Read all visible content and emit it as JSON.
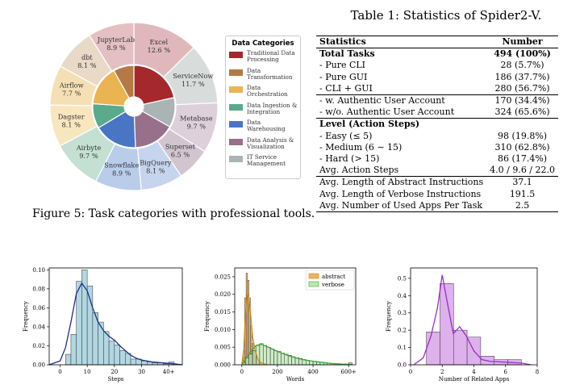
{
  "pie": {
    "legend_title": "Data Categories",
    "legend": [
      {
        "label": "Traditional Data Processing",
        "color": "#a4282c"
      },
      {
        "label": "Data Transformation",
        "color": "#b37a45"
      },
      {
        "label": "Data Orchestration",
        "color": "#eab452"
      },
      {
        "label": "Data Ingestion & Integration",
        "color": "#5aaa8b"
      },
      {
        "label": "Data Warehousing",
        "color": "#4a74c4"
      },
      {
        "label": "Data Analysis & Visualization",
        "color": "#98708c"
      },
      {
        "label": "IT Service Management",
        "color": "#aab4b4"
      }
    ],
    "outer": [
      {
        "name": "Excel",
        "pct": "12.6 %",
        "value": 12.6,
        "color": "#e0b8bb"
      },
      {
        "name": "ServiceNow",
        "pct": "11.7 %",
        "value": 11.7,
        "color": "#d8dcdb"
      },
      {
        "name": "Metabase",
        "pct": "9.7 %",
        "value": 9.7,
        "color": "#ddd0db"
      },
      {
        "name": "Superset",
        "pct": "6.5 %",
        "value": 6.5,
        "color": "#d3c5d0"
      },
      {
        "name": "BigQuery",
        "pct": "8.1 %",
        "value": 8.1,
        "color": "#c6d4ee"
      },
      {
        "name": "Snowflake",
        "pct": "8.9 %",
        "value": 8.9,
        "color": "#b9cdea"
      },
      {
        "name": "Airbyte",
        "pct": "9.7 %",
        "value": 9.7,
        "color": "#c3e0d2"
      },
      {
        "name": "Dagster",
        "pct": "8.1 %",
        "value": 8.1,
        "color": "#f8e6bf"
      },
      {
        "name": "Airflow",
        "pct": "7.7 %",
        "value": 7.7,
        "color": "#f5e0b5"
      },
      {
        "name": "dbt",
        "pct": "8.1 %",
        "value": 8.1,
        "color": "#e9d9c7"
      },
      {
        "name": "JupyterLab",
        "pct": "8.9 %",
        "value": 8.9,
        "color": "#e4c0c3"
      }
    ],
    "inner": [
      {
        "value": 21.5,
        "color": "#a4282c"
      },
      {
        "value": 11.7,
        "color": "#aab4b4"
      },
      {
        "value": 16.2,
        "color": "#98708c"
      },
      {
        "value": 17.0,
        "color": "#4a74c4"
      },
      {
        "value": 9.7,
        "color": "#5aaa8b"
      },
      {
        "value": 15.8,
        "color": "#eab452"
      },
      {
        "value": 8.1,
        "color": "#b37a45"
      }
    ]
  },
  "caption": "Figure 5: Task categories with professional tools.",
  "table": {
    "title": "Table 1: Statistics of Spider2-V.",
    "header": [
      "Statistics",
      "Number"
    ],
    "rows": [
      [
        "Total Tasks",
        "494 (100%)"
      ],
      [
        "- Pure CLI",
        "28 (5.7%)"
      ],
      [
        "- Pure GUI",
        "186 (37.7%)"
      ],
      [
        "- CLI + GUI",
        "280 (56.7%)"
      ],
      [
        "- w. Authentic User Account",
        "170 (34.4%)"
      ],
      [
        "- w/o. Authentic User Account",
        "324 (65.6%)"
      ],
      [
        "Level (Action Steps)",
        ""
      ],
      [
        "- Easy (≤ 5)",
        "98 (19.8%)"
      ],
      [
        "- Medium (6 ∼ 15)",
        "310 (62.8%)"
      ],
      [
        "- Hard (> 15)",
        "86 (17.4%)"
      ],
      [
        "Avg. Action Steps",
        "4.0 / 9.6 / 22.0"
      ],
      [
        "Avg. Length of Abstract Instructions",
        "37.1"
      ],
      [
        "Avg. Length of Verbose Instructions",
        "191.5"
      ],
      [
        "Avg. Number of Used Apps Per Task",
        "2.5"
      ]
    ]
  },
  "chart_data": [
    {
      "type": "bar",
      "xlabel": "Steps",
      "ylabel": "Frequency",
      "xticks": [
        "0",
        "10",
        "20",
        "30",
        "40+"
      ],
      "yticks": [
        "0.00",
        "0.02",
        "0.04",
        "0.06",
        "0.08",
        "0.10"
      ],
      "xlim": [
        -4,
        45
      ],
      "ylim": [
        0,
        0.102
      ],
      "bin_width": 2,
      "bins_start": [
        0,
        2,
        4,
        6,
        8,
        10,
        12,
        14,
        16,
        18,
        20,
        22,
        24,
        26,
        28,
        30,
        32,
        34,
        36,
        38,
        40
      ],
      "values": [
        0.0,
        0.011,
        0.032,
        0.088,
        0.1,
        0.083,
        0.055,
        0.045,
        0.035,
        0.025,
        0.021,
        0.015,
        0.012,
        0.006,
        0.006,
        0.004,
        0.003,
        0.002,
        0.002,
        0.001,
        0.003
      ],
      "kde": [
        [
          -4,
          0.0
        ],
        [
          0,
          0.004
        ],
        [
          2,
          0.018
        ],
        [
          4,
          0.045
        ],
        [
          6,
          0.075
        ],
        [
          8,
          0.086
        ],
        [
          10,
          0.078
        ],
        [
          12,
          0.06
        ],
        [
          14,
          0.045
        ],
        [
          16,
          0.036
        ],
        [
          18,
          0.03
        ],
        [
          20,
          0.026
        ],
        [
          22,
          0.02
        ],
        [
          24,
          0.015
        ],
        [
          26,
          0.01
        ],
        [
          28,
          0.007
        ],
        [
          30,
          0.005
        ],
        [
          34,
          0.003
        ],
        [
          38,
          0.002
        ],
        [
          42,
          0.001
        ],
        [
          45,
          0.0
        ]
      ],
      "bar_color": "#a9d3de",
      "line_color": "#1e2f8a"
    },
    {
      "type": "bar",
      "xlabel": "Words",
      "ylabel": "Frequency",
      "xticks": [
        "0",
        "200",
        "400",
        "600+"
      ],
      "yticks": [
        "0.000",
        "0.005",
        "0.010",
        "0.015",
        "0.020",
        "0.025"
      ],
      "xlim": [
        -40,
        640
      ],
      "ylim": [
        0,
        0.0275
      ],
      "series": [
        {
          "name": "abstract",
          "color": "#f2b25e",
          "line_color": "#d88a10",
          "bin_width": 8,
          "bins_start": [
            0,
            8,
            16,
            24,
            32,
            40,
            48,
            56,
            64,
            72,
            80,
            88,
            96,
            104
          ],
          "values": [
            0.0005,
            0.004,
            0.019,
            0.026,
            0.024,
            0.019,
            0.011,
            0.006,
            0.004,
            0.003,
            0.002,
            0.001,
            0.001,
            0.0005
          ],
          "kde": [
            [
              0,
              0.0
            ],
            [
              10,
              0.004
            ],
            [
              20,
              0.014
            ],
            [
              30,
              0.0205
            ],
            [
              40,
              0.019
            ],
            [
              50,
              0.014
            ],
            [
              60,
              0.008
            ],
            [
              75,
              0.004
            ],
            [
              90,
              0.0015
            ],
            [
              110,
              0.0005
            ],
            [
              140,
              0.0
            ]
          ]
        },
        {
          "name": "verbose",
          "color": "#bde6b1",
          "line_color": "#3aa83a",
          "bin_width": 20,
          "bins_start": [
            0,
            20,
            40,
            60,
            80,
            100,
            120,
            140,
            160,
            180,
            200,
            220,
            240,
            260,
            280,
            300,
            320,
            340,
            360,
            380,
            400,
            420,
            440,
            460,
            480,
            500,
            520,
            540,
            560,
            580,
            600
          ],
          "values": [
            0.0005,
            0.002,
            0.003,
            0.004,
            0.0055,
            0.006,
            0.0055,
            0.005,
            0.0045,
            0.004,
            0.0038,
            0.0033,
            0.003,
            0.0027,
            0.0023,
            0.002,
            0.0018,
            0.0015,
            0.0013,
            0.0011,
            0.001,
            0.0008,
            0.0007,
            0.0006,
            0.0005,
            0.0004,
            0.0003,
            0.0003,
            0.0002,
            0.0002,
            0.0006
          ],
          "kde": [
            [
              0,
              0.0002
            ],
            [
              40,
              0.003
            ],
            [
              80,
              0.0055
            ],
            [
              110,
              0.0058
            ],
            [
              150,
              0.005
            ],
            [
              200,
              0.0038
            ],
            [
              250,
              0.0028
            ],
            [
              300,
              0.002
            ],
            [
              350,
              0.0014
            ],
            [
              400,
              0.001
            ],
            [
              450,
              0.0007
            ],
            [
              500,
              0.0004
            ],
            [
              560,
              0.0002
            ],
            [
              620,
              0.0001
            ]
          ]
        }
      ]
    },
    {
      "type": "bar",
      "xlabel": "Number of Related Apps",
      "ylabel": "Frequency",
      "xticks": [
        "0",
        "2",
        "4",
        "6",
        "8"
      ],
      "yticks": [
        "0.0",
        "0.1",
        "0.2",
        "0.3",
        "0.4",
        "0.5"
      ],
      "xlim": [
        0,
        8
      ],
      "ylim": [
        0,
        0.56
      ],
      "bin_width": 0.857,
      "bins_start": [
        1,
        1.857,
        2.714,
        3.571,
        4.429,
        5.286,
        6.143
      ],
      "values": [
        0.19,
        0.47,
        0.2,
        0.16,
        0.05,
        0.03,
        0.03
      ],
      "kde": [
        [
          0.2,
          0.0
        ],
        [
          0.8,
          0.04
        ],
        [
          1.3,
          0.17
        ],
        [
          1.7,
          0.33
        ],
        [
          2.0,
          0.52
        ],
        [
          2.3,
          0.37
        ],
        [
          2.7,
          0.18
        ],
        [
          3.1,
          0.22
        ],
        [
          3.5,
          0.17
        ],
        [
          4.0,
          0.08
        ],
        [
          4.5,
          0.03
        ],
        [
          5.0,
          0.02
        ],
        [
          6.0,
          0.015
        ],
        [
          7.0,
          0.01
        ],
        [
          7.6,
          0.0
        ]
      ],
      "bar_color": "#d9a8ea",
      "line_color": "#9b2fc0"
    }
  ]
}
